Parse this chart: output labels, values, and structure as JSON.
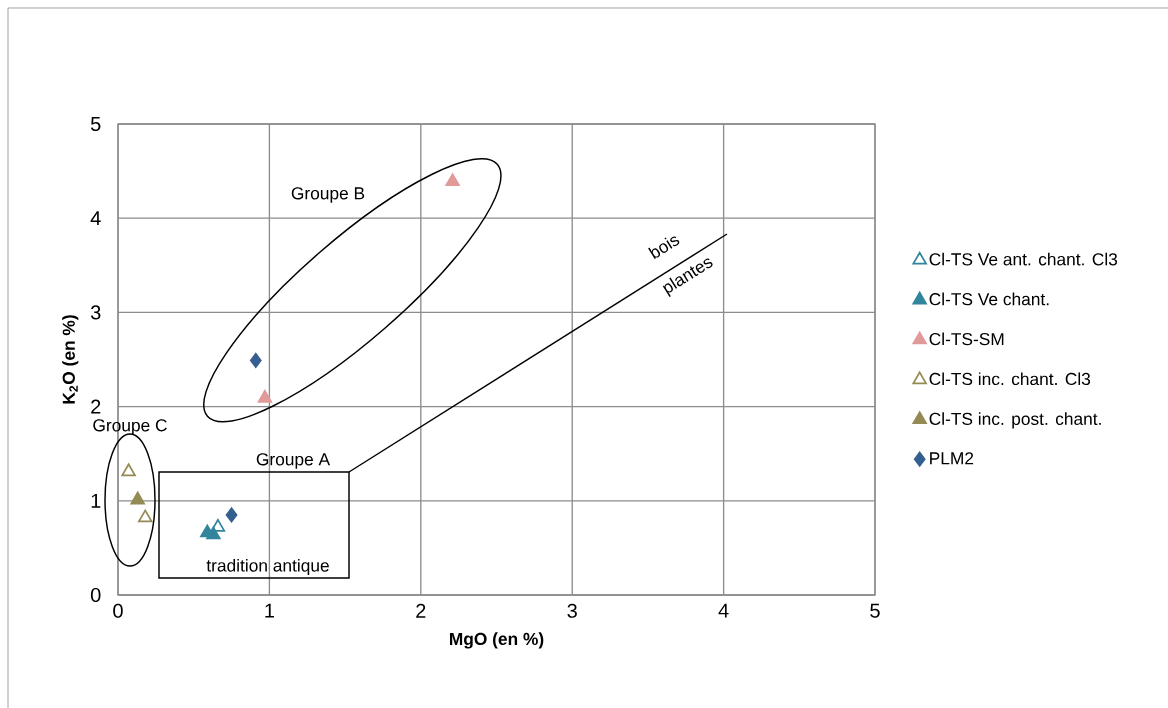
{
  "chart_data": {
    "type": "scatter",
    "xlabel": "MgO (en %)",
    "ylabel": "K$_{2}$O (en %)",
    "xlim": [
      0,
      5
    ],
    "ylim": [
      0,
      5
    ],
    "xticks": [
      0,
      1,
      2,
      3,
      4,
      5
    ],
    "yticks": [
      0,
      1,
      2,
      3,
      4,
      5
    ],
    "grid": true,
    "legend": "right",
    "series": [
      {
        "name": "Cl-TS Ve ant. chant. Cl3",
        "color": "#31859c",
        "marker": "triangle-open",
        "x": [
          0.66
        ],
        "values": [
          0.72
        ]
      },
      {
        "name": "Cl-TS Ve chant.",
        "color": "#31859c",
        "marker": "triangle",
        "x": [
          0.59,
          0.63
        ],
        "values": [
          0.66,
          0.64
        ]
      },
      {
        "name": "Cl-TS-SM",
        "color": "#e09a99",
        "marker": "triangle",
        "x": [
          0.97,
          2.21
        ],
        "values": [
          2.09,
          4.39
        ]
      },
      {
        "name": "Cl-TS inc. chant. Cl3",
        "color": "#948a54",
        "marker": "triangle-open",
        "x": [
          0.07,
          0.18
        ],
        "values": [
          1.31,
          0.82
        ]
      },
      {
        "name": "Cl-TS inc. post. chant.",
        "color": "#948a54",
        "marker": "triangle",
        "x": [
          0.13
        ],
        "values": [
          1.01
        ]
      },
      {
        "name": "PLM2",
        "color": "#355f91",
        "marker": "diamond",
        "x": [
          0.75,
          0.91
        ],
        "values": [
          0.85,
          2.49
        ]
      }
    ],
    "annotations": [
      "Groupe B",
      "Groupe C",
      "Groupe  A",
      "tradition antique",
      "bois",
      "plantes"
    ]
  }
}
